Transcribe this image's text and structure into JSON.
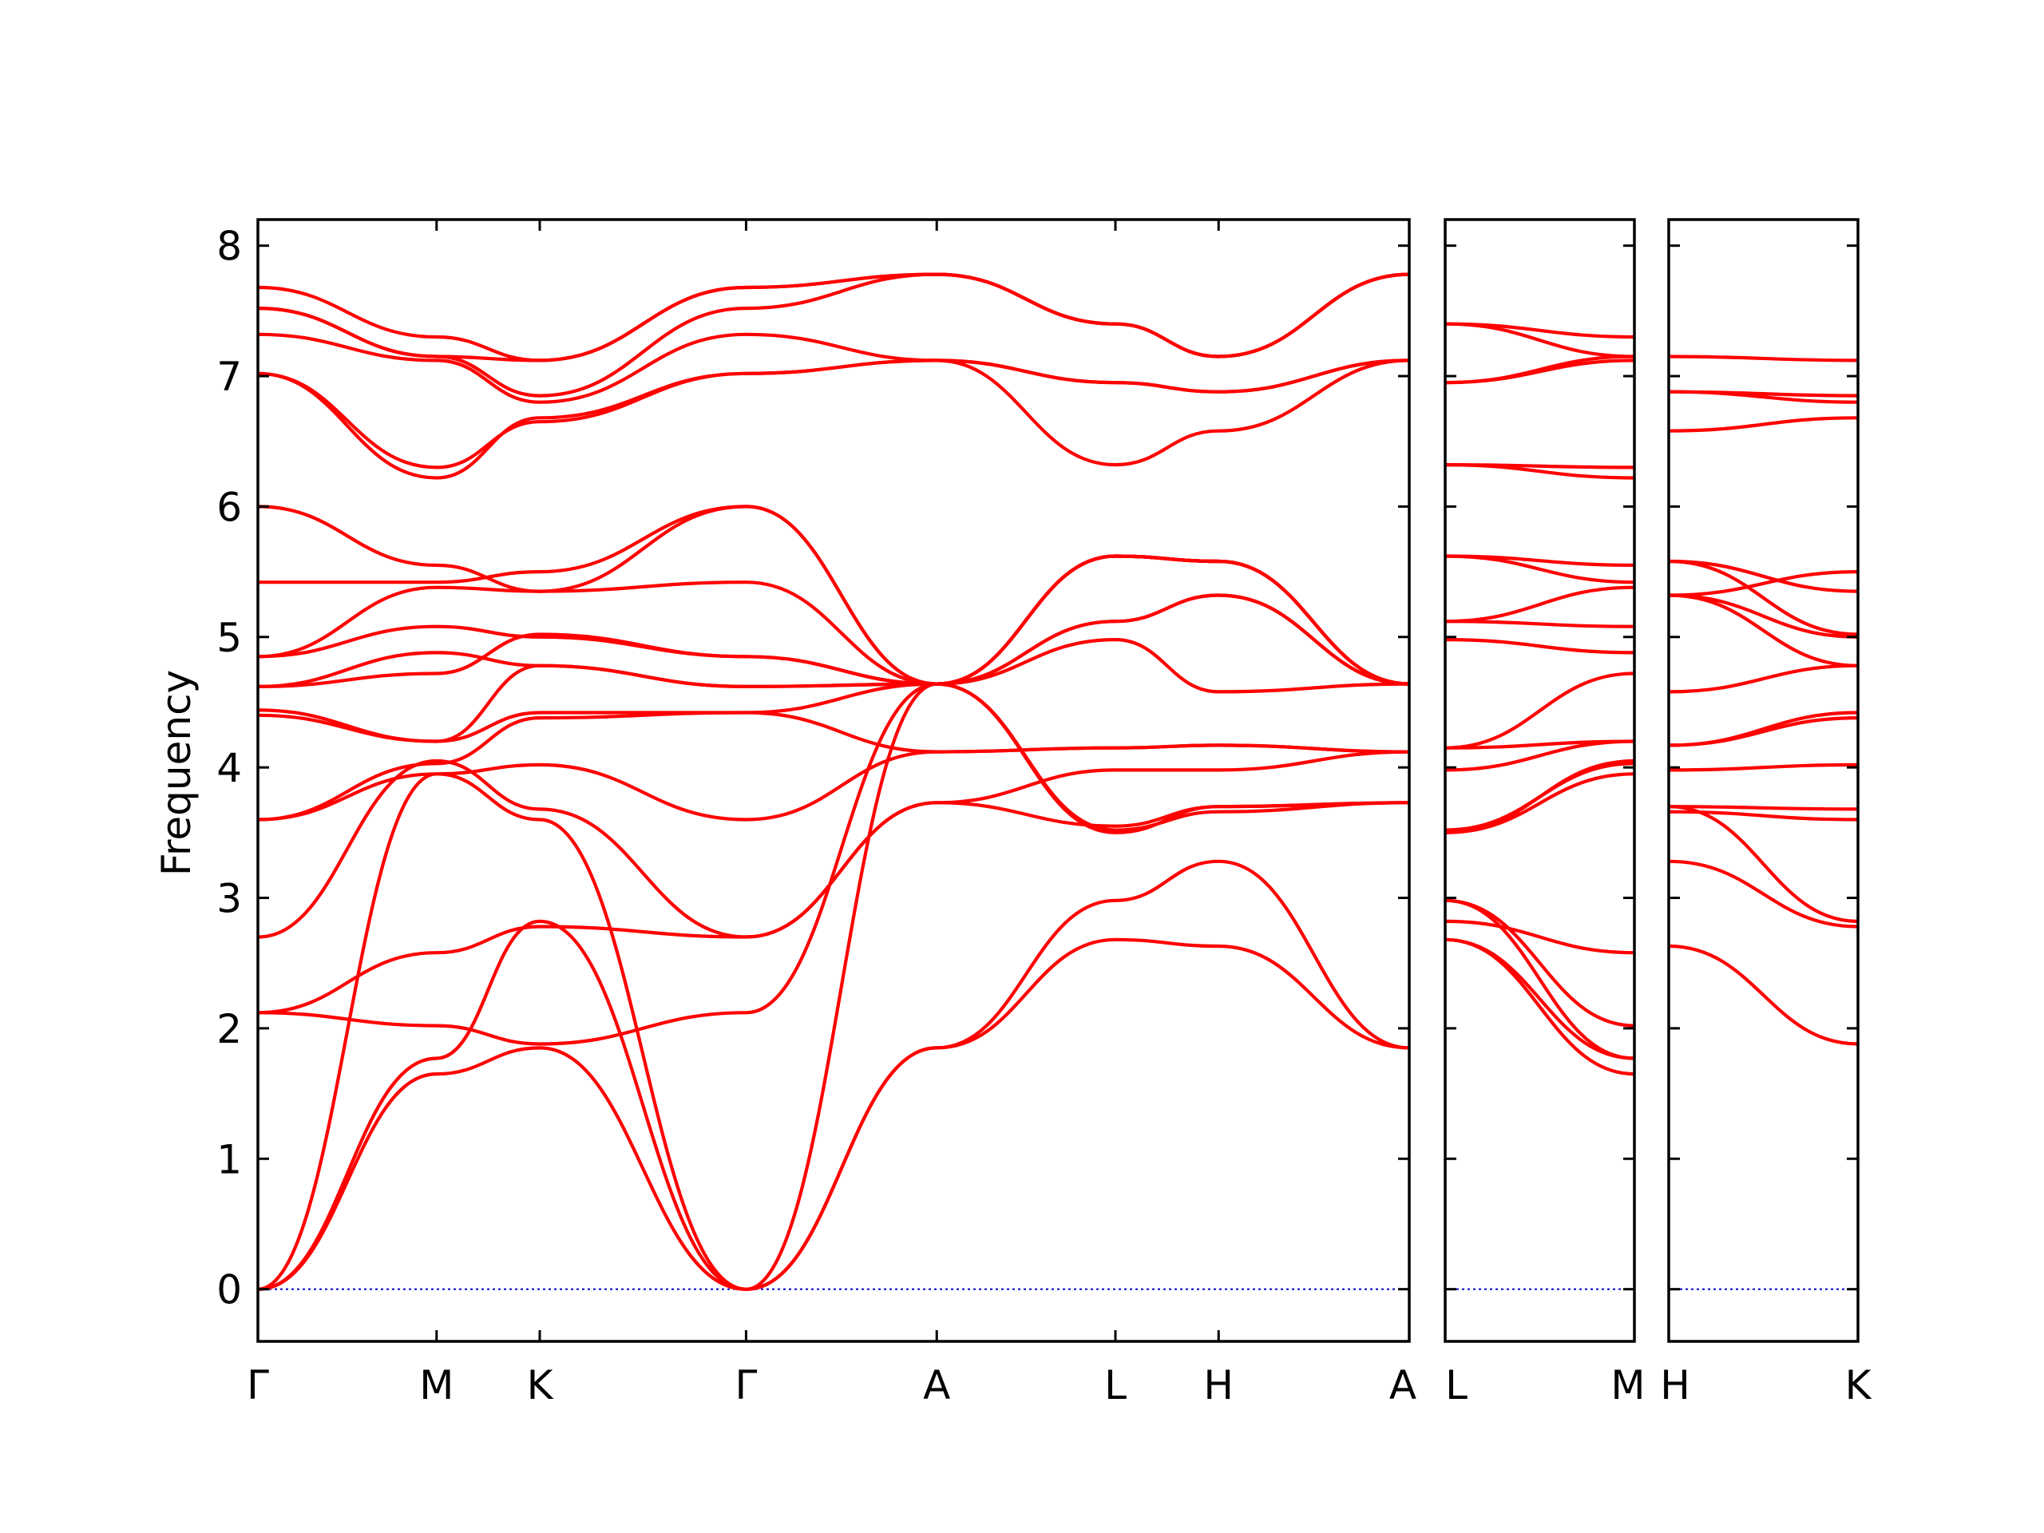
{
  "colors": {
    "bands": "#ff0000",
    "zero_line": "#0000cc",
    "frame": "#000000"
  },
  "chart_data": {
    "type": "line",
    "title": "",
    "ylabel": "Frequency",
    "xlabel": "",
    "ylim": [
      -0.4,
      8.2
    ],
    "yticks": [
      "0",
      "1",
      "2",
      "3",
      "4",
      "5",
      "6",
      "7",
      "8"
    ],
    "grid": false,
    "legend": "none",
    "zero_line": true,
    "panels": [
      {
        "path": [
          "Γ",
          "M",
          "K",
          "Γ",
          "A",
          "L",
          "H",
          "A"
        ],
        "x": [
          0,
          0.866,
          1.366,
          2.366,
          3.29,
          4.156,
          4.656,
          5.58
        ],
        "bands": [
          {
            "y": [
              0,
              1.65,
              1.85,
              0,
              1.85,
              2.68,
              2.63,
              1.85
            ]
          },
          {
            "y": [
              0,
              1.77,
              2.82,
              0,
              1.85,
              2.98,
              3.28,
              1.85
            ]
          },
          {
            "y": [
              0,
              3.95,
              3.6,
              0,
              4.64,
              3.5,
              3.7,
              3.73
            ]
          },
          {
            "y": [
              2.12,
              2.02,
              1.88,
              2.12,
              4.64,
              3.52,
              3.66,
              3.73
            ]
          },
          {
            "y": [
              2.12,
              2.58,
              2.78,
              2.7,
              3.73,
              3.55,
              3.7,
              3.73
            ]
          },
          {
            "y": [
              2.7,
              4.05,
              3.68,
              2.7,
              3.73,
              3.98,
              3.98,
              4.12
            ]
          },
          {
            "y": [
              3.6,
              3.95,
              4.02,
              3.6,
              4.12,
              4.15,
              4.17,
              4.12
            ]
          },
          {
            "y": [
              3.6,
              4.03,
              4.38,
              4.42,
              4.12,
              4.15,
              4.17,
              4.12
            ]
          },
          {
            "y": [
              4.4,
              4.2,
              4.42,
              4.42,
              4.64,
              4.98,
              4.58,
              4.64
            ]
          },
          {
            "y": [
              4.44,
              4.2,
              4.78,
              4.62,
              4.64,
              5.12,
              5.32,
              4.64
            ]
          },
          {
            "y": [
              4.62,
              4.88,
              4.78,
              4.62,
              4.64,
              5.12,
              5.32,
              4.64
            ]
          },
          {
            "y": [
              4.62,
              4.72,
              5.02,
              4.85,
              4.64,
              5.62,
              5.58,
              4.64
            ]
          },
          {
            "y": [
              4.85,
              5.08,
              5.0,
              4.85,
              4.64,
              5.62,
              5.58,
              4.64
            ]
          },
          {
            "y": [
              4.85,
              5.38,
              5.35,
              5.42,
              4.64,
              5.62,
              5.58,
              4.64
            ]
          },
          {
            "y": [
              5.42,
              5.42,
              5.5,
              6.0,
              4.64,
              5.62,
              5.58,
              4.64
            ]
          },
          {
            "y": [
              6.0,
              5.55,
              5.35,
              6.0,
              4.64,
              5.62,
              5.58,
              4.64
            ]
          },
          {
            "y": [
              7.02,
              6.22,
              6.68,
              7.02,
              7.12,
              6.32,
              6.58,
              7.12
            ]
          },
          {
            "y": [
              7.02,
              6.3,
              6.65,
              7.02,
              7.12,
              6.95,
              6.88,
              7.12
            ]
          },
          {
            "y": [
              7.32,
              7.12,
              6.8,
              7.32,
              7.12,
              6.95,
              6.88,
              7.12
            ]
          },
          {
            "y": [
              7.52,
              7.15,
              6.85,
              7.52,
              7.78,
              7.4,
              7.15,
              7.78
            ]
          },
          {
            "y": [
              7.52,
              7.15,
              7.12,
              7.68,
              7.78,
              7.4,
              7.15,
              7.78
            ]
          },
          {
            "y": [
              7.68,
              7.3,
              7.12,
              7.68,
              7.78,
              7.4,
              7.15,
              7.78
            ]
          }
        ]
      },
      {
        "path": [
          "L",
          "M"
        ],
        "x": [
          0,
          1
        ],
        "bands": [
          {
            "y": [
              2.68,
              1.65
            ]
          },
          {
            "y": [
              2.68,
              1.77
            ]
          },
          {
            "y": [
              2.98,
              1.77
            ]
          },
          {
            "y": [
              2.98,
              2.02
            ]
          },
          {
            "y": [
              2.82,
              2.58
            ]
          },
          {
            "y": [
              3.5,
              3.95
            ]
          },
          {
            "y": [
              3.5,
              4.05
            ]
          },
          {
            "y": [
              3.52,
              4.03
            ]
          },
          {
            "y": [
              3.98,
              4.2
            ]
          },
          {
            "y": [
              4.15,
              4.2
            ]
          },
          {
            "y": [
              4.15,
              4.72
            ]
          },
          {
            "y": [
              4.98,
              4.88
            ]
          },
          {
            "y": [
              5.12,
              5.08
            ]
          },
          {
            "y": [
              5.12,
              5.38
            ]
          },
          {
            "y": [
              5.62,
              5.42
            ]
          },
          {
            "y": [
              5.62,
              5.55
            ]
          },
          {
            "y": [
              6.32,
              6.22
            ]
          },
          {
            "y": [
              6.32,
              6.3
            ]
          },
          {
            "y": [
              6.95,
              7.12
            ]
          },
          {
            "y": [
              6.95,
              7.15
            ]
          },
          {
            "y": [
              7.4,
              7.15
            ]
          },
          {
            "y": [
              7.4,
              7.3
            ]
          }
        ]
      },
      {
        "path": [
          "H",
          "K"
        ],
        "x": [
          0,
          1
        ],
        "bands": [
          {
            "y": [
              2.63,
              1.88
            ]
          },
          {
            "y": [
              3.28,
              2.78
            ]
          },
          {
            "y": [
              3.7,
              2.82
            ]
          },
          {
            "y": [
              3.66,
              3.6
            ]
          },
          {
            "y": [
              3.7,
              3.68
            ]
          },
          {
            "y": [
              3.98,
              4.02
            ]
          },
          {
            "y": [
              4.17,
              4.38
            ]
          },
          {
            "y": [
              4.17,
              4.42
            ]
          },
          {
            "y": [
              4.58,
              4.78
            ]
          },
          {
            "y": [
              5.32,
              4.78
            ]
          },
          {
            "y": [
              5.32,
              5.0
            ]
          },
          {
            "y": [
              5.58,
              5.02
            ]
          },
          {
            "y": [
              5.58,
              5.35
            ]
          },
          {
            "y": [
              5.32,
              5.5
            ]
          },
          {
            "y": [
              6.58,
              6.68
            ]
          },
          {
            "y": [
              6.88,
              6.8
            ]
          },
          {
            "y": [
              6.88,
              6.85
            ]
          },
          {
            "y": [
              7.15,
              7.12
            ]
          }
        ]
      }
    ]
  }
}
